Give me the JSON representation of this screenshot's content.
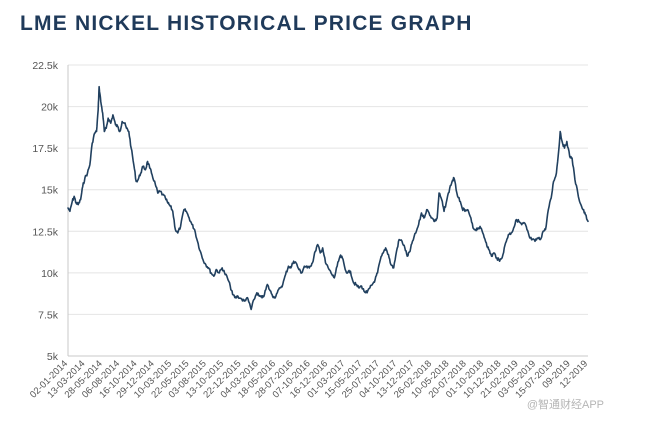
{
  "chart_data": {
    "type": "line",
    "title": "LME NICKEL HISTORICAL PRICE GRAPH",
    "xlabel": "",
    "ylabel": "",
    "ylim": [
      5000,
      22500
    ],
    "yticks": [
      {
        "value": 5000,
        "label": "5k"
      },
      {
        "value": 7500,
        "label": "7.5k"
      },
      {
        "value": 10000,
        "label": "10k"
      },
      {
        "value": 12500,
        "label": "12.5k"
      },
      {
        "value": 15000,
        "label": "15k"
      },
      {
        "value": 17500,
        "label": "17.5k"
      },
      {
        "value": 20000,
        "label": "20k"
      },
      {
        "value": 22500,
        "label": "22.5k"
      }
    ],
    "xlim": [
      "2014-01-02",
      "2019-12-31"
    ],
    "xtick_labels": [
      "02-01-2014",
      "13-03-2014",
      "28-05-2014",
      "06-08-2014",
      "16-10-2014",
      "29-12-2014",
      "10-03-2015",
      "22-05-2015",
      "03-08-2015",
      "13-10-2015",
      "22-12-2015",
      "04-03-2016",
      "18-05-2016",
      "28-07-2016",
      "07-10-2016",
      "16-12-2016",
      "01-03-2017",
      "15-05-2017",
      "25-07-2017",
      "04-10-2017",
      "13-12-2017",
      "26-02-2018",
      "10-05-2018",
      "20-07-2018",
      "01-10-2018",
      "10-12-2018",
      "21-02-2019",
      "03-05-2019",
      "15-07-2019",
      "09-2019",
      "12-2019"
    ],
    "grid": true,
    "legend": "none",
    "series": [
      {
        "name": "LME Nickel",
        "color": "#21405f",
        "points": [
          [
            "2014-01-02",
            13900
          ],
          [
            "2014-01-10",
            13700
          ],
          [
            "2014-01-20",
            14300
          ],
          [
            "2014-01-28",
            14600
          ],
          [
            "2014-02-05",
            14200
          ],
          [
            "2014-02-14",
            14100
          ],
          [
            "2014-02-24",
            14400
          ],
          [
            "2014-03-05",
            15200
          ],
          [
            "2014-03-14",
            15700
          ],
          [
            "2014-03-25",
            16000
          ],
          [
            "2014-04-04",
            16500
          ],
          [
            "2014-04-14",
            17800
          ],
          [
            "2014-04-24",
            18400
          ],
          [
            "2014-05-02",
            18500
          ],
          [
            "2014-05-09",
            19800
          ],
          [
            "2014-05-13",
            21200
          ],
          [
            "2014-05-20",
            20300
          ],
          [
            "2014-05-28",
            19600
          ],
          [
            "2014-06-04",
            18500
          ],
          [
            "2014-06-12",
            18700
          ],
          [
            "2014-06-20",
            19300
          ],
          [
            "2014-07-01",
            19000
          ],
          [
            "2014-07-10",
            19500
          ],
          [
            "2014-07-21",
            18900
          ],
          [
            "2014-07-30",
            18800
          ],
          [
            "2014-08-08",
            18500
          ],
          [
            "2014-08-18",
            19100
          ],
          [
            "2014-08-28",
            19000
          ],
          [
            "2014-09-05",
            18700
          ],
          [
            "2014-09-15",
            18500
          ],
          [
            "2014-09-25",
            17500
          ],
          [
            "2014-10-06",
            16500
          ],
          [
            "2014-10-16",
            15500
          ],
          [
            "2014-10-24",
            15600
          ],
          [
            "2014-11-04",
            16000
          ],
          [
            "2014-11-14",
            16400
          ],
          [
            "2014-11-24",
            16200
          ],
          [
            "2014-12-03",
            16700
          ],
          [
            "2014-12-12",
            16300
          ],
          [
            "2014-12-22",
            15900
          ],
          [
            "2015-01-05",
            15300
          ],
          [
            "2015-01-15",
            14800
          ],
          [
            "2015-01-26",
            14900
          ],
          [
            "2015-02-04",
            14700
          ],
          [
            "2015-02-16",
            14500
          ],
          [
            "2015-02-26",
            14200
          ],
          [
            "2015-03-09",
            14000
          ],
          [
            "2015-03-19",
            13700
          ],
          [
            "2015-03-30",
            12600
          ],
          [
            "2015-04-09",
            12400
          ],
          [
            "2015-04-21",
            12800
          ],
          [
            "2015-05-05",
            13800
          ],
          [
            "2015-05-15",
            13700
          ],
          [
            "2015-05-27",
            13300
          ],
          [
            "2015-06-08",
            12900
          ],
          [
            "2015-06-19",
            12600
          ],
          [
            "2015-07-01",
            11900
          ],
          [
            "2015-07-13",
            11300
          ],
          [
            "2015-07-24",
            10800
          ],
          [
            "2015-08-05",
            10500
          ],
          [
            "2015-08-17",
            10300
          ],
          [
            "2015-08-27",
            10000
          ],
          [
            "2015-09-08",
            9800
          ],
          [
            "2015-09-18",
            10200
          ],
          [
            "2015-10-01",
            10000
          ],
          [
            "2015-10-13",
            10300
          ],
          [
            "2015-10-23",
            10000
          ],
          [
            "2015-11-04",
            9700
          ],
          [
            "2015-11-16",
            9200
          ],
          [
            "2015-11-26",
            8700
          ],
          [
            "2015-12-08",
            8500
          ],
          [
            "2015-12-18",
            8600
          ],
          [
            "2016-01-04",
            8400
          ],
          [
            "2016-01-14",
            8300
          ],
          [
            "2016-01-25",
            8500
          ],
          [
            "2016-02-04",
            8200
          ],
          [
            "2016-02-12",
            7800
          ],
          [
            "2016-02-24",
            8400
          ],
          [
            "2016-03-07",
            8800
          ],
          [
            "2016-03-17",
            8600
          ],
          [
            "2016-03-29",
            8500
          ],
          [
            "2016-04-08",
            8700
          ],
          [
            "2016-04-20",
            9300
          ],
          [
            "2016-04-29",
            9000
          ],
          [
            "2016-05-10",
            8700
          ],
          [
            "2016-05-20",
            8500
          ],
          [
            "2016-06-01",
            8800
          ],
          [
            "2016-06-13",
            9100
          ],
          [
            "2016-06-24",
            9300
          ],
          [
            "2016-07-06",
            9900
          ],
          [
            "2016-07-18",
            10400
          ],
          [
            "2016-07-28",
            10300
          ],
          [
            "2016-08-09",
            10700
          ],
          [
            "2016-08-19",
            10600
          ],
          [
            "2016-08-31",
            10200
          ],
          [
            "2016-09-12",
            10000
          ],
          [
            "2016-09-23",
            10400
          ],
          [
            "2016-10-05",
            10300
          ],
          [
            "2016-10-17",
            10400
          ],
          [
            "2016-10-27",
            10600
          ],
          [
            "2016-11-08",
            11300
          ],
          [
            "2016-11-18",
            11700
          ],
          [
            "2016-11-29",
            11200
          ],
          [
            "2016-12-09",
            11500
          ],
          [
            "2016-12-21",
            10600
          ],
          [
            "2017-01-05",
            10200
          ],
          [
            "2017-01-17",
            9900
          ],
          [
            "2017-01-27",
            9700
          ],
          [
            "2017-02-08",
            10400
          ],
          [
            "2017-02-20",
            11000
          ],
          [
            "2017-03-02",
            10900
          ],
          [
            "2017-03-14",
            10200
          ],
          [
            "2017-03-24",
            10000
          ],
          [
            "2017-04-05",
            10100
          ],
          [
            "2017-04-18",
            9400
          ],
          [
            "2017-04-28",
            9300
          ],
          [
            "2017-05-10",
            9100
          ],
          [
            "2017-05-22",
            9200
          ],
          [
            "2017-06-01",
            8900
          ],
          [
            "2017-06-14",
            8800
          ],
          [
            "2017-06-26",
            9100
          ],
          [
            "2017-07-06",
            9300
          ],
          [
            "2017-07-18",
            9600
          ],
          [
            "2017-07-28",
            10000
          ],
          [
            "2017-08-09",
            10800
          ],
          [
            "2017-08-21",
            11200
          ],
          [
            "2017-08-31",
            11500
          ],
          [
            "2017-09-12",
            11100
          ],
          [
            "2017-09-22",
            10500
          ],
          [
            "2017-10-04",
            10300
          ],
          [
            "2017-10-16",
            11300
          ],
          [
            "2017-10-27",
            12000
          ],
          [
            "2017-11-08",
            11900
          ],
          [
            "2017-11-20",
            11500
          ],
          [
            "2017-11-30",
            11000
          ],
          [
            "2017-12-12",
            11300
          ],
          [
            "2017-12-22",
            11900
          ],
          [
            "2018-01-05",
            12400
          ],
          [
            "2018-01-17",
            12900
          ],
          [
            "2018-01-29",
            13600
          ],
          [
            "2018-02-08",
            13300
          ],
          [
            "2018-02-20",
            13800
          ],
          [
            "2018-03-02",
            13600
          ],
          [
            "2018-03-14",
            13300
          ],
          [
            "2018-03-26",
            13100
          ],
          [
            "2018-04-05",
            13300
          ],
          [
            "2018-04-13",
            14800
          ],
          [
            "2018-04-24",
            14400
          ],
          [
            "2018-05-04",
            13700
          ],
          [
            "2018-05-16",
            14400
          ],
          [
            "2018-05-28",
            15100
          ],
          [
            "2018-06-07",
            15500
          ],
          [
            "2018-06-15",
            15700
          ],
          [
            "2018-06-27",
            14800
          ],
          [
            "2018-07-09",
            14300
          ],
          [
            "2018-07-19",
            13900
          ],
          [
            "2018-07-31",
            13700
          ],
          [
            "2018-08-10",
            13800
          ],
          [
            "2018-08-22",
            13400
          ],
          [
            "2018-09-03",
            12700
          ],
          [
            "2018-09-13",
            12600
          ],
          [
            "2018-09-25",
            12700
          ],
          [
            "2018-10-05",
            12700
          ],
          [
            "2018-10-17",
            12300
          ],
          [
            "2018-10-29",
            11800
          ],
          [
            "2018-11-08",
            11400
          ],
          [
            "2018-11-20",
            11000
          ],
          [
            "2018-11-30",
            11200
          ],
          [
            "2018-12-12",
            10900
          ],
          [
            "2018-12-24",
            10700
          ],
          [
            "2019-01-07",
            11100
          ],
          [
            "2019-01-18",
            11800
          ],
          [
            "2019-01-30",
            12300
          ],
          [
            "2019-02-11",
            12400
          ],
          [
            "2019-02-21",
            12700
          ],
          [
            "2019-03-05",
            13200
          ],
          [
            "2019-03-15",
            13100
          ],
          [
            "2019-03-27",
            12900
          ],
          [
            "2019-04-08",
            13000
          ],
          [
            "2019-04-18",
            12600
          ],
          [
            "2019-04-30",
            12100
          ],
          [
            "2019-05-10",
            12000
          ],
          [
            "2019-05-22",
            11900
          ],
          [
            "2019-06-03",
            12100
          ],
          [
            "2019-06-13",
            12000
          ],
          [
            "2019-06-25",
            12500
          ],
          [
            "2019-07-05",
            12600
          ],
          [
            "2019-07-17",
            13800
          ],
          [
            "2019-07-29",
            14500
          ],
          [
            "2019-08-08",
            15500
          ],
          [
            "2019-08-20",
            16000
          ],
          [
            "2019-08-30",
            17400
          ],
          [
            "2019-09-05",
            18500
          ],
          [
            "2019-09-13",
            17900
          ],
          [
            "2019-09-23",
            17500
          ],
          [
            "2019-10-03",
            17900
          ],
          [
            "2019-10-15",
            17000
          ],
          [
            "2019-10-25",
            16900
          ],
          [
            "2019-11-06",
            15600
          ],
          [
            "2019-11-18",
            14800
          ],
          [
            "2019-11-28",
            14200
          ],
          [
            "2019-12-10",
            13800
          ],
          [
            "2019-12-20",
            13500
          ],
          [
            "2019-12-31",
            13100
          ]
        ]
      }
    ]
  },
  "watermark": "@智通财经APP"
}
